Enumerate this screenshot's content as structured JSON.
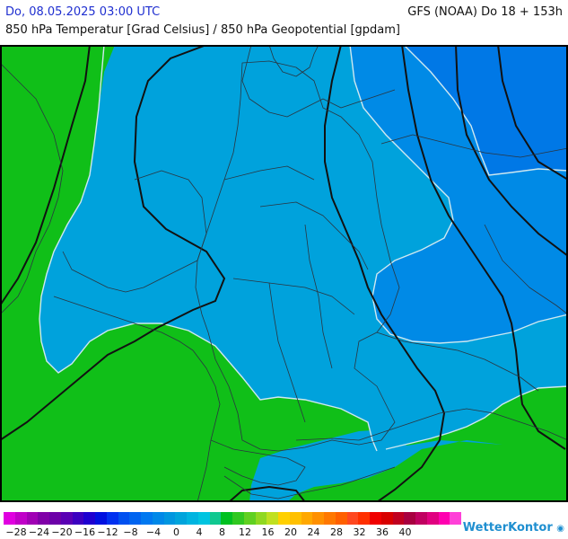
{
  "header": {
    "date_time": "Do, 08.05.2025 03:00 UTC",
    "model_run": "GFS (NOAA) Do 18 + 153h",
    "parameter": "850 hPa Temperatur [Grad Celsius] / 850 hPa Geopotential [gpdam]"
  },
  "legend": {
    "tick_labels": [
      "−28",
      "−24",
      "−20",
      "−16",
      "−12",
      "−8",
      "−4",
      "0",
      "4",
      "8",
      "12",
      "16",
      "20",
      "24",
      "28",
      "32",
      "36",
      "40"
    ],
    "colors": [
      "#e000e0",
      "#c000c8",
      "#a000b4",
      "#8000a8",
      "#6c00a8",
      "#5a00b4",
      "#3c00c0",
      "#1e00d0",
      "#0010e0",
      "#0030f0",
      "#0050f0",
      "#0064f0",
      "#0078f0",
      "#0088e8",
      "#0096e0",
      "#00a4dc",
      "#00b4e0",
      "#00c4e0",
      "#10c890",
      "#00c020",
      "#30c820",
      "#60d020",
      "#90d820",
      "#c0e020",
      "#ffd000",
      "#ffc000",
      "#ffa800",
      "#ff9000",
      "#ff7800",
      "#ff6000",
      "#ff4820",
      "#ff3000",
      "#f00000",
      "#d80000",
      "#c00020",
      "#a80040",
      "#c00060",
      "#e00080",
      "#ff00b0",
      "#ff40d8"
    ]
  },
  "map_colors": {
    "green": "#10bf18",
    "cyan": "#00a2dc",
    "mid_blue": "#0096e0",
    "blue": "#0089e6",
    "deep_blue": "#0078e6"
  },
  "brand": {
    "name": "WetterKontor"
  }
}
